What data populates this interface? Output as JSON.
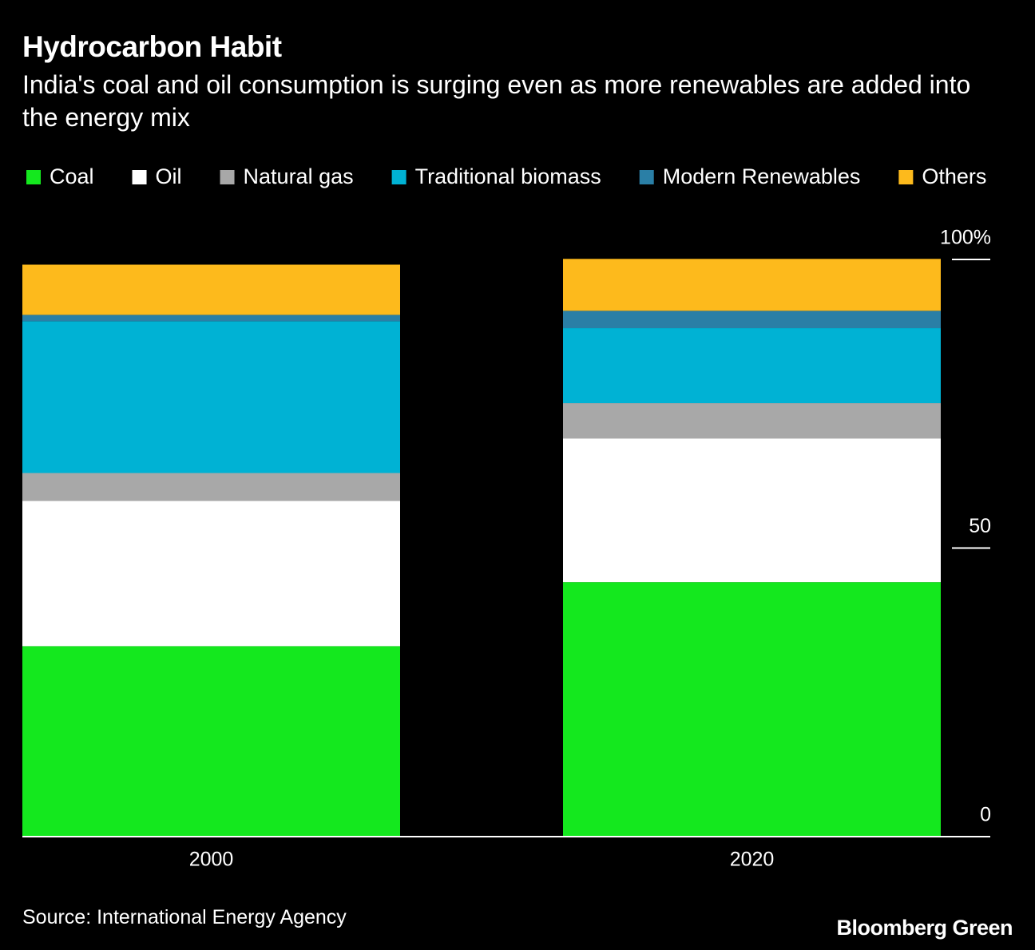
{
  "chart_data": {
    "type": "stacked_bar",
    "title": "Hydrocarbon Habit",
    "subtitle": "India's coal and oil consumption is surging even as more renewables are added into the energy mix",
    "categories": [
      "2000",
      "2020"
    ],
    "series": [
      {
        "name": "Coal",
        "color": "#14e81e",
        "values": [
          33,
          44.1
        ]
      },
      {
        "name": "Oil",
        "color": "#ffffff",
        "values": [
          25.2,
          24.9
        ]
      },
      {
        "name": "Natural gas",
        "color": "#a8a8a8",
        "values": [
          4.8,
          6.1
        ]
      },
      {
        "name": "Traditional biomass",
        "color": "#00b2d4",
        "values": [
          26.3,
          13
        ]
      },
      {
        "name": "Modern Renewables",
        "color": "#2a7fa6",
        "values": [
          1.1,
          3
        ]
      },
      {
        "name": "Others",
        "color": "#fdba1c",
        "values": [
          8.7,
          9
        ]
      }
    ],
    "ylim": [
      0,
      100
    ],
    "yticks": [
      0,
      50,
      {
        "value": 100,
        "label": "100%"
      }
    ],
    "source": "Source: International Energy Agency",
    "brand": "Bloomberg Green"
  }
}
